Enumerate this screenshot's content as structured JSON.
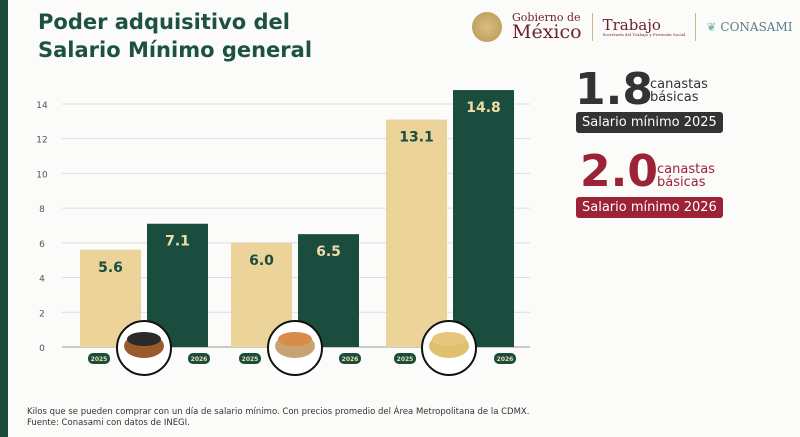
{
  "title_line1": "Poder adquisitivo del",
  "title_line2": "Salario Mínimo general",
  "logos": {
    "gob_line1": "Gobierno de",
    "gob_line2": "México",
    "trabajo": "Trabajo",
    "trabajo_sub": "Secretaría del Trabajo y Previsión Social",
    "conasami": "CONASAMI"
  },
  "summary": [
    {
      "value": "1.8",
      "unit_line1": "canastas",
      "unit_line2": "básicas",
      "label": "Salario mínimo 2025",
      "color": "#333333"
    },
    {
      "value": "2.0",
      "unit_line1": "canastas",
      "unit_line2": "básicas",
      "label": "Salario mínimo 2026",
      "color": "#9b2335"
    }
  ],
  "chart_data": {
    "type": "bar",
    "categories": [
      "Frijol",
      "Huevo",
      "Tortilla"
    ],
    "series": [
      {
        "name": "2025",
        "values": [
          5.6,
          6.0,
          13.1
        ],
        "color": "#ecd39a"
      },
      {
        "name": "2026",
        "values": [
          7.1,
          6.5,
          14.8
        ],
        "color": "#1a4d3e"
      }
    ],
    "ylim": [
      0,
      15
    ],
    "yticks": [
      0,
      2,
      4,
      6,
      8,
      10,
      12,
      14
    ],
    "grid": true,
    "category_icons": [
      "beans-bowl-icon",
      "eggs-bowl-icon",
      "tortillas-icon"
    ]
  },
  "footnote_line1": "Kilos que se pueden comprar con un día de salario mínimo. Con precios promedio del Área Metropolitana de la CDMX.",
  "footnote_line2": "Fuente: Conasami con datos de INEGI."
}
